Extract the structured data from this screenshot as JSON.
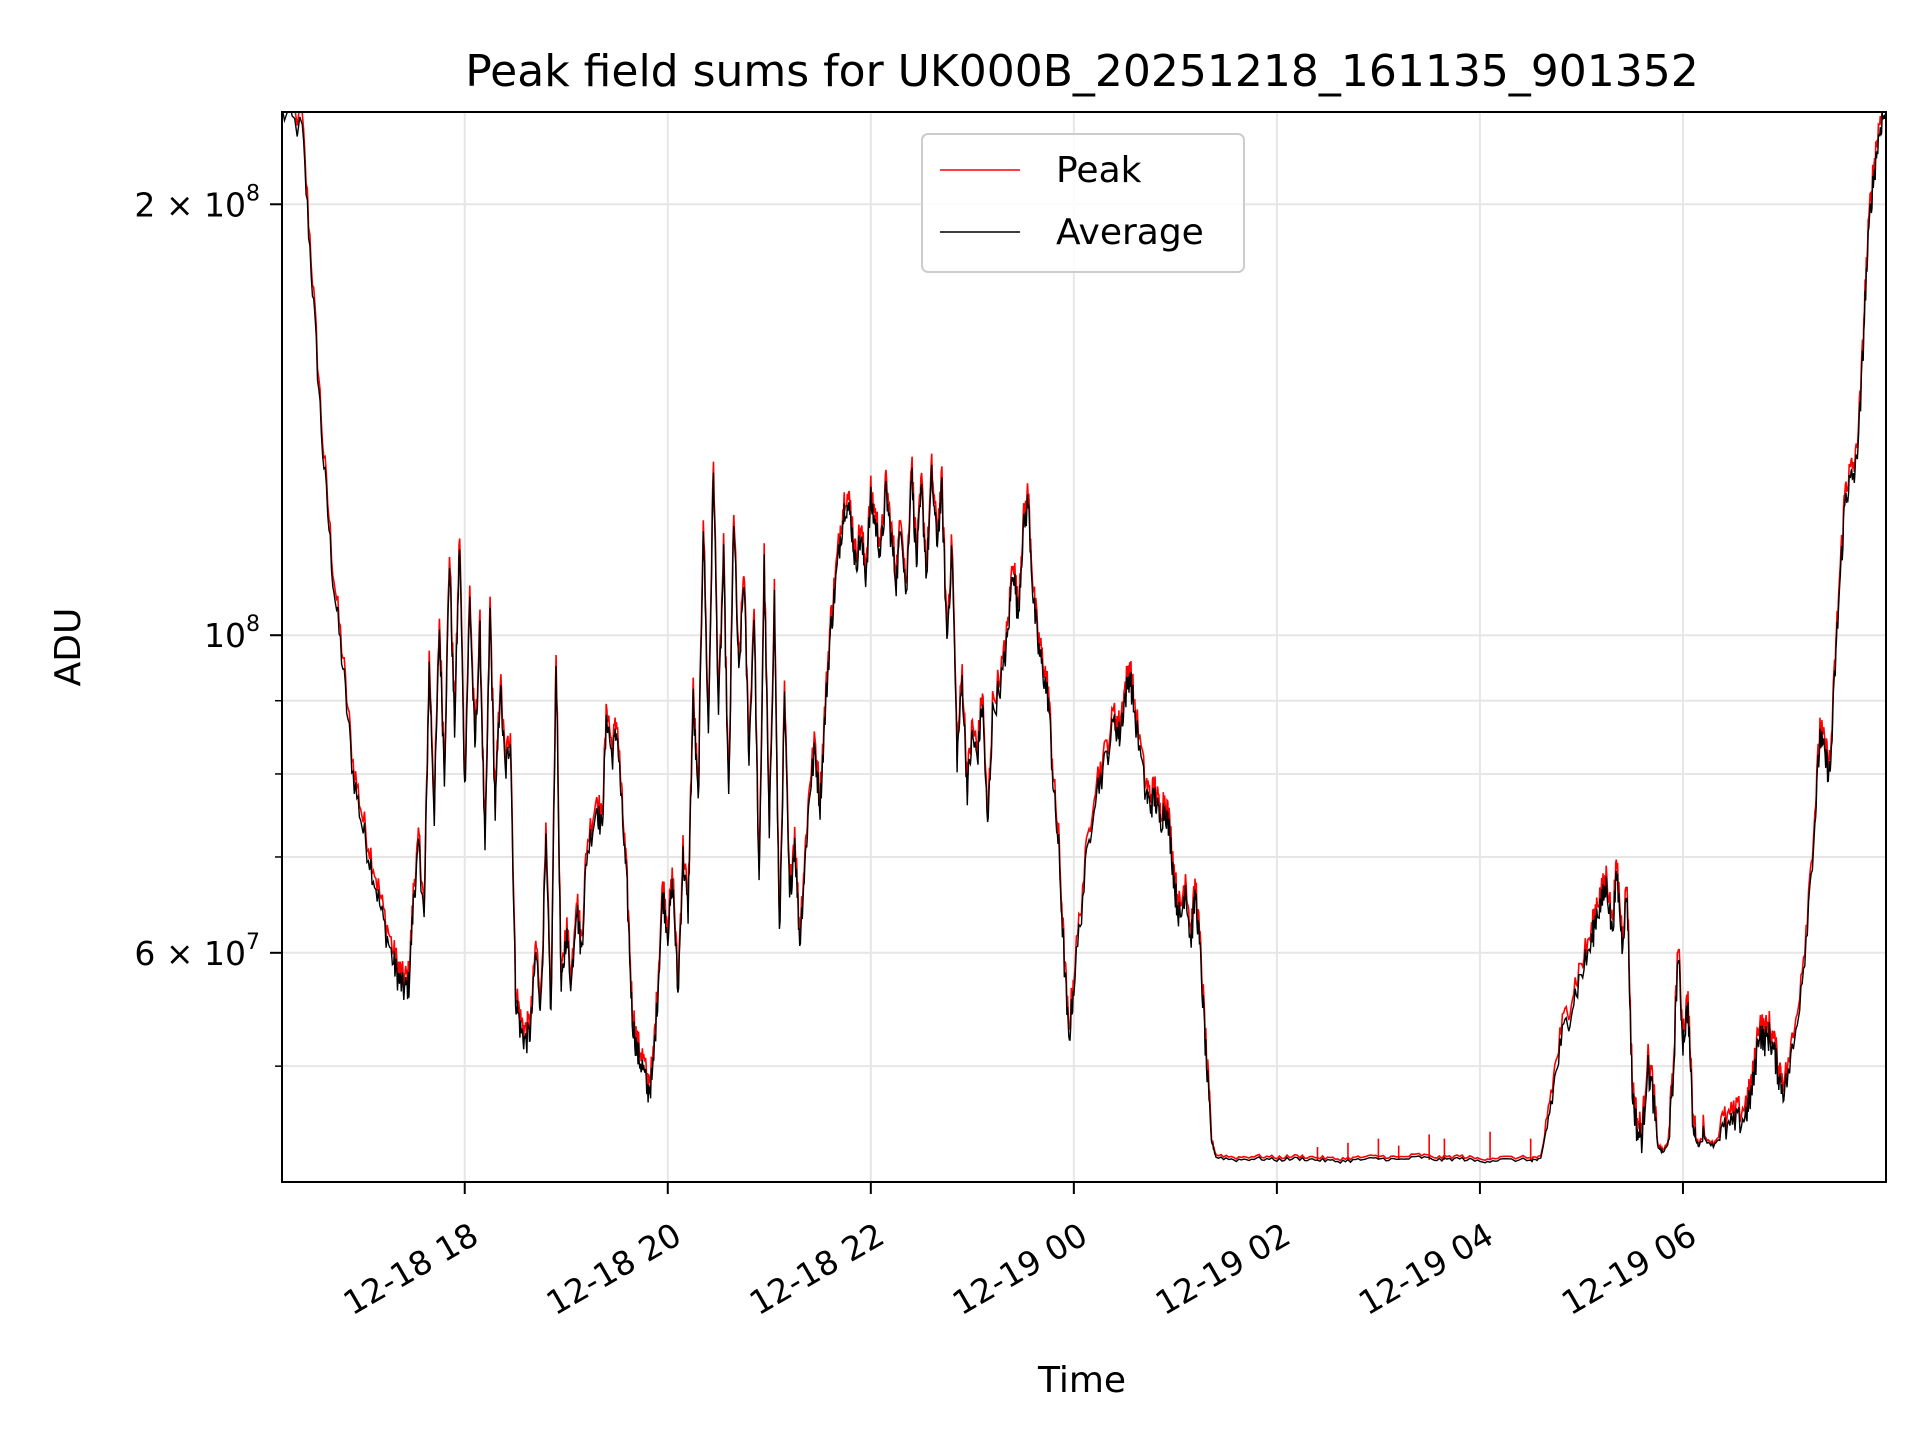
{
  "chart_data": {
    "type": "line",
    "title": "Peak field sums for UK000B_20251218_161135_901352",
    "xlabel": "Time",
    "ylabel": "ADU",
    "yscale": "log",
    "ylim": [
      41500000,
      232000000
    ],
    "xlim": [
      -1.8,
      14.0
    ],
    "grid": true,
    "legend_position": "top-center",
    "x_ticks": [
      {
        "value": 0,
        "label": "12-18 18"
      },
      {
        "value": 2,
        "label": "12-18 20"
      },
      {
        "value": 4,
        "label": "12-18 22"
      },
      {
        "value": 6,
        "label": "12-19 00"
      },
      {
        "value": 8,
        "label": "12-19 02"
      },
      {
        "value": 10,
        "label": "12-19 04"
      },
      {
        "value": 12,
        "label": "12-19 06"
      }
    ],
    "y_major_ticks": [
      {
        "value": 60000000,
        "base": "6",
        "exp": "7"
      },
      {
        "value": 100000000,
        "base": "",
        "exp": "8"
      },
      {
        "value": 200000000,
        "base": "2",
        "exp": "8"
      }
    ],
    "y_minor_ticks": [
      50000000,
      70000000,
      80000000,
      90000000
    ],
    "series": [
      {
        "name": "Peak",
        "color": "#ff0000"
      },
      {
        "name": "Average",
        "color": "#000000"
      }
    ],
    "x_units": "hours since 12-18 18:00",
    "series_points": [
      [
        -1.8,
        232
      ],
      [
        -1.6,
        225
      ],
      [
        -1.5,
        175
      ],
      [
        -1.4,
        135
      ],
      [
        -1.3,
        110
      ],
      [
        -1.2,
        95
      ],
      [
        -1.1,
        80
      ],
      [
        -1.0,
        73
      ],
      [
        -0.9,
        68
      ],
      [
        -0.8,
        63
      ],
      [
        -0.7,
        59
      ],
      [
        -0.65,
        57.5
      ],
      [
        -0.6,
        56.5
      ],
      [
        -0.55,
        57
      ],
      [
        -0.5,
        66
      ],
      [
        -0.45,
        71
      ],
      [
        -0.4,
        63
      ],
      [
        -0.35,
        95
      ],
      [
        -0.3,
        75
      ],
      [
        -0.25,
        101
      ],
      [
        -0.2,
        80
      ],
      [
        -0.15,
        113
      ],
      [
        -0.1,
        86
      ],
      [
        -0.05,
        116
      ],
      [
        0.0,
        78
      ],
      [
        0.05,
        106
      ],
      [
        0.1,
        83
      ],
      [
        0.15,
        100
      ],
      [
        0.2,
        70
      ],
      [
        0.25,
        104
      ],
      [
        0.3,
        75
      ],
      [
        0.35,
        92
      ],
      [
        0.4,
        80
      ],
      [
        0.45,
        85
      ],
      [
        0.5,
        56
      ],
      [
        0.55,
        53
      ],
      [
        0.6,
        52
      ],
      [
        0.65,
        53
      ],
      [
        0.7,
        60
      ],
      [
        0.75,
        55
      ],
      [
        0.8,
        71
      ],
      [
        0.85,
        54
      ],
      [
        0.9,
        97
      ],
      [
        0.95,
        56
      ],
      [
        1.0,
        62
      ],
      [
        1.05,
        57
      ],
      [
        1.1,
        65
      ],
      [
        1.15,
        60
      ],
      [
        1.2,
        70
      ],
      [
        1.3,
        76
      ],
      [
        1.35,
        73
      ],
      [
        1.4,
        88
      ],
      [
        1.45,
        82
      ],
      [
        1.5,
        86
      ],
      [
        1.55,
        75
      ],
      [
        1.6,
        66
      ],
      [
        1.65,
        54
      ],
      [
        1.7,
        51
      ],
      [
        1.75,
        50
      ],
      [
        1.8,
        48
      ],
      [
        1.85,
        49
      ],
      [
        1.9,
        56
      ],
      [
        1.95,
        66
      ],
      [
        2.0,
        62
      ],
      [
        2.05,
        67
      ],
      [
        2.1,
        56
      ],
      [
        2.15,
        70
      ],
      [
        2.2,
        64
      ],
      [
        2.25,
        90
      ],
      [
        2.3,
        76
      ],
      [
        2.35,
        120
      ],
      [
        2.4,
        85
      ],
      [
        2.45,
        131
      ],
      [
        2.5,
        88
      ],
      [
        2.55,
        113
      ],
      [
        2.6,
        76
      ],
      [
        2.65,
        121
      ],
      [
        2.7,
        93
      ],
      [
        2.75,
        110
      ],
      [
        2.8,
        82
      ],
      [
        2.85,
        104
      ],
      [
        2.9,
        66
      ],
      [
        2.95,
        112
      ],
      [
        3.0,
        72
      ],
      [
        3.05,
        106
      ],
      [
        3.1,
        61
      ],
      [
        3.15,
        90
      ],
      [
        3.2,
        65
      ],
      [
        3.25,
        72
      ],
      [
        3.3,
        61
      ],
      [
        3.35,
        69
      ],
      [
        3.4,
        78
      ],
      [
        3.45,
        83
      ],
      [
        3.5,
        76
      ],
      [
        3.55,
        88
      ],
      [
        3.6,
        100
      ],
      [
        3.65,
        108
      ],
      [
        3.7,
        117
      ],
      [
        3.75,
        124
      ],
      [
        3.8,
        121
      ],
      [
        3.85,
        112
      ],
      [
        3.9,
        117
      ],
      [
        3.95,
        110
      ],
      [
        4.0,
        124
      ],
      [
        4.05,
        119
      ],
      [
        4.1,
        114
      ],
      [
        4.15,
        126
      ],
      [
        4.2,
        117
      ],
      [
        4.25,
        109
      ],
      [
        4.3,
        120
      ],
      [
        4.35,
        106
      ],
      [
        4.4,
        131
      ],
      [
        4.45,
        112
      ],
      [
        4.5,
        126
      ],
      [
        4.55,
        110
      ],
      [
        4.6,
        129
      ],
      [
        4.65,
        116
      ],
      [
        4.7,
        126
      ],
      [
        4.75,
        99
      ],
      [
        4.8,
        115
      ],
      [
        4.85,
        82
      ],
      [
        4.9,
        93
      ],
      [
        4.95,
        78
      ],
      [
        5.0,
        85
      ],
      [
        5.05,
        82
      ],
      [
        5.1,
        90
      ],
      [
        5.15,
        73
      ],
      [
        5.2,
        88
      ],
      [
        5.3,
        94
      ],
      [
        5.35,
        100
      ],
      [
        5.4,
        112
      ],
      [
        5.45,
        103
      ],
      [
        5.5,
        118
      ],
      [
        5.55,
        124
      ],
      [
        5.6,
        106
      ],
      [
        5.65,
        98
      ],
      [
        5.7,
        94
      ],
      [
        5.75,
        90
      ],
      [
        5.8,
        78
      ],
      [
        5.85,
        71
      ],
      [
        5.9,
        60
      ],
      [
        5.95,
        52
      ],
      [
        6.0,
        57
      ],
      [
        6.1,
        67
      ],
      [
        6.2,
        77
      ],
      [
        6.3,
        81
      ],
      [
        6.4,
        87
      ],
      [
        6.45,
        85
      ],
      [
        6.5,
        90
      ],
      [
        6.55,
        94
      ],
      [
        6.6,
        88
      ],
      [
        6.7,
        78
      ],
      [
        6.75,
        76
      ],
      [
        6.8,
        77
      ],
      [
        6.85,
        74
      ],
      [
        6.9,
        76
      ],
      [
        6.95,
        72
      ],
      [
        7.0,
        66
      ],
      [
        7.05,
        63
      ],
      [
        7.1,
        67
      ],
      [
        7.15,
        61
      ],
      [
        7.2,
        66
      ],
      [
        7.25,
        59
      ],
      [
        7.3,
        51
      ],
      [
        7.35,
        44.5
      ],
      [
        7.4,
        43.2
      ],
      [
        7.6,
        43.0
      ],
      [
        7.8,
        43.1
      ],
      [
        8.0,
        43.0
      ],
      [
        8.2,
        43.1
      ],
      [
        8.4,
        43.0
      ],
      [
        8.6,
        42.9
      ],
      [
        8.8,
        43.0
      ],
      [
        9.0,
        43.1
      ],
      [
        9.2,
        43.0
      ],
      [
        9.4,
        43.2
      ],
      [
        9.6,
        43.0
      ],
      [
        9.8,
        43.1
      ],
      [
        10.0,
        42.9
      ],
      [
        10.2,
        43.0
      ],
      [
        10.5,
        43.0
      ],
      [
        10.6,
        43.0
      ],
      [
        10.7,
        47
      ],
      [
        10.8,
        52
      ],
      [
        10.9,
        55
      ],
      [
        11.0,
        58
      ],
      [
        11.1,
        61
      ],
      [
        11.15,
        64
      ],
      [
        11.2,
        65
      ],
      [
        11.25,
        67
      ],
      [
        11.3,
        62
      ],
      [
        11.35,
        68
      ],
      [
        11.4,
        61
      ],
      [
        11.45,
        66
      ],
      [
        11.5,
        48
      ],
      [
        11.55,
        45
      ],
      [
        11.6,
        44.5
      ],
      [
        11.65,
        50
      ],
      [
        11.7,
        48
      ],
      [
        11.75,
        44
      ],
      [
        11.8,
        43.5
      ],
      [
        11.85,
        44
      ],
      [
        11.9,
        48
      ],
      [
        11.95,
        60
      ],
      [
        12.0,
        52
      ],
      [
        12.05,
        55
      ],
      [
        12.1,
        45
      ],
      [
        12.15,
        44
      ],
      [
        12.2,
        44.5
      ],
      [
        12.3,
        44
      ],
      [
        12.4,
        45
      ],
      [
        12.5,
        45.5
      ],
      [
        12.6,
        46
      ],
      [
        12.65,
        47
      ],
      [
        12.7,
        49
      ],
      [
        12.75,
        53
      ],
      [
        12.8,
        52
      ],
      [
        12.85,
        52.5
      ],
      [
        12.9,
        51
      ],
      [
        12.95,
        49
      ],
      [
        13.0,
        48
      ],
      [
        13.1,
        52
      ],
      [
        13.2,
        60
      ],
      [
        13.3,
        74
      ],
      [
        13.35,
        85
      ],
      [
        13.4,
        82
      ],
      [
        13.45,
        80
      ],
      [
        13.5,
        95
      ],
      [
        13.55,
        110
      ],
      [
        13.6,
        125
      ],
      [
        13.65,
        128
      ],
      [
        13.7,
        130
      ],
      [
        13.75,
        145
      ],
      [
        13.8,
        175
      ],
      [
        13.85,
        200
      ],
      [
        13.9,
        215
      ],
      [
        13.95,
        228
      ],
      [
        14.0,
        232
      ]
    ],
    "peak_spikes": [
      [
        8.4,
        43.9
      ],
      [
        8.7,
        44.2
      ],
      [
        9.0,
        44.5
      ],
      [
        9.2,
        44.0
      ],
      [
        9.5,
        44.8
      ],
      [
        9.65,
        44.5
      ],
      [
        10.1,
        45.0
      ],
      [
        10.5,
        44.5
      ]
    ]
  }
}
